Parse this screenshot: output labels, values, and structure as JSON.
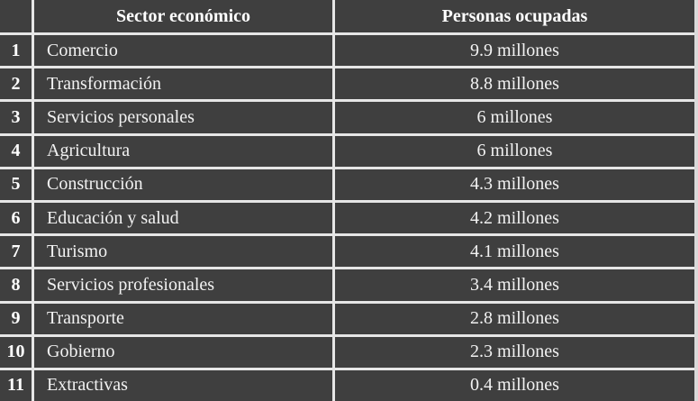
{
  "palette": {
    "cell_background": "#3f3f3f",
    "gridline": "#e6e6e6",
    "text": "#f2f2f2",
    "header_text": "#ffffff"
  },
  "table": {
    "header": {
      "num_label": "",
      "sector_label": "Sector económico",
      "personas_label": "Personas ocupadas"
    },
    "rows": [
      {
        "num": "1",
        "sector": "Comercio",
        "personas": "9.9 millones"
      },
      {
        "num": "2",
        "sector": "Transformación",
        "personas": "8.8 millones"
      },
      {
        "num": "3",
        "sector": "Servicios personales",
        "personas": "6 millones"
      },
      {
        "num": "4",
        "sector": "Agricultura",
        "personas": "6 millones"
      },
      {
        "num": "5",
        "sector": "Construcción",
        "personas": "4.3 millones"
      },
      {
        "num": "6",
        "sector": "Educación y salud",
        "personas": "4.2 millones"
      },
      {
        "num": "7",
        "sector": "Turismo",
        "personas": "4.1 millones"
      },
      {
        "num": "8",
        "sector": "Servicios profesionales",
        "personas": "3.4 millones"
      },
      {
        "num": "9",
        "sector": "Transporte",
        "personas": "2.8 millones"
      },
      {
        "num": "10",
        "sector": "Gobierno",
        "personas": "2.3 millones"
      },
      {
        "num": "11",
        "sector": "Extractivas",
        "personas": "0.4 millones"
      }
    ]
  },
  "chart_data": {
    "type": "table",
    "columns": [
      "",
      "Sector económico",
      "Personas ocupadas"
    ],
    "rows": [
      [
        "1",
        "Comercio",
        "9.9 millones"
      ],
      [
        "2",
        "Transformación",
        "8.8 millones"
      ],
      [
        "3",
        "Servicios personales",
        "6 millones"
      ],
      [
        "4",
        "Agricultura",
        "6 millones"
      ],
      [
        "5",
        "Construcción",
        "4.3 millones"
      ],
      [
        "6",
        "Educación y salud",
        "4.2 millones"
      ],
      [
        "7",
        "Turismo",
        "4.1 millones"
      ],
      [
        "8",
        "Servicios profesionales",
        "3.4 millones"
      ],
      [
        "9",
        "Transporte",
        "2.8 millones"
      ],
      [
        "10",
        "Gobierno",
        "2.3 millones"
      ],
      [
        "11",
        "Extractivas",
        "0.4 millones"
      ]
    ],
    "values_unit": "millones de personas",
    "numeric_values": [
      9.9,
      8.8,
      6,
      6,
      4.3,
      4.2,
      4.1,
      3.4,
      2.8,
      2.3,
      0.4
    ]
  }
}
